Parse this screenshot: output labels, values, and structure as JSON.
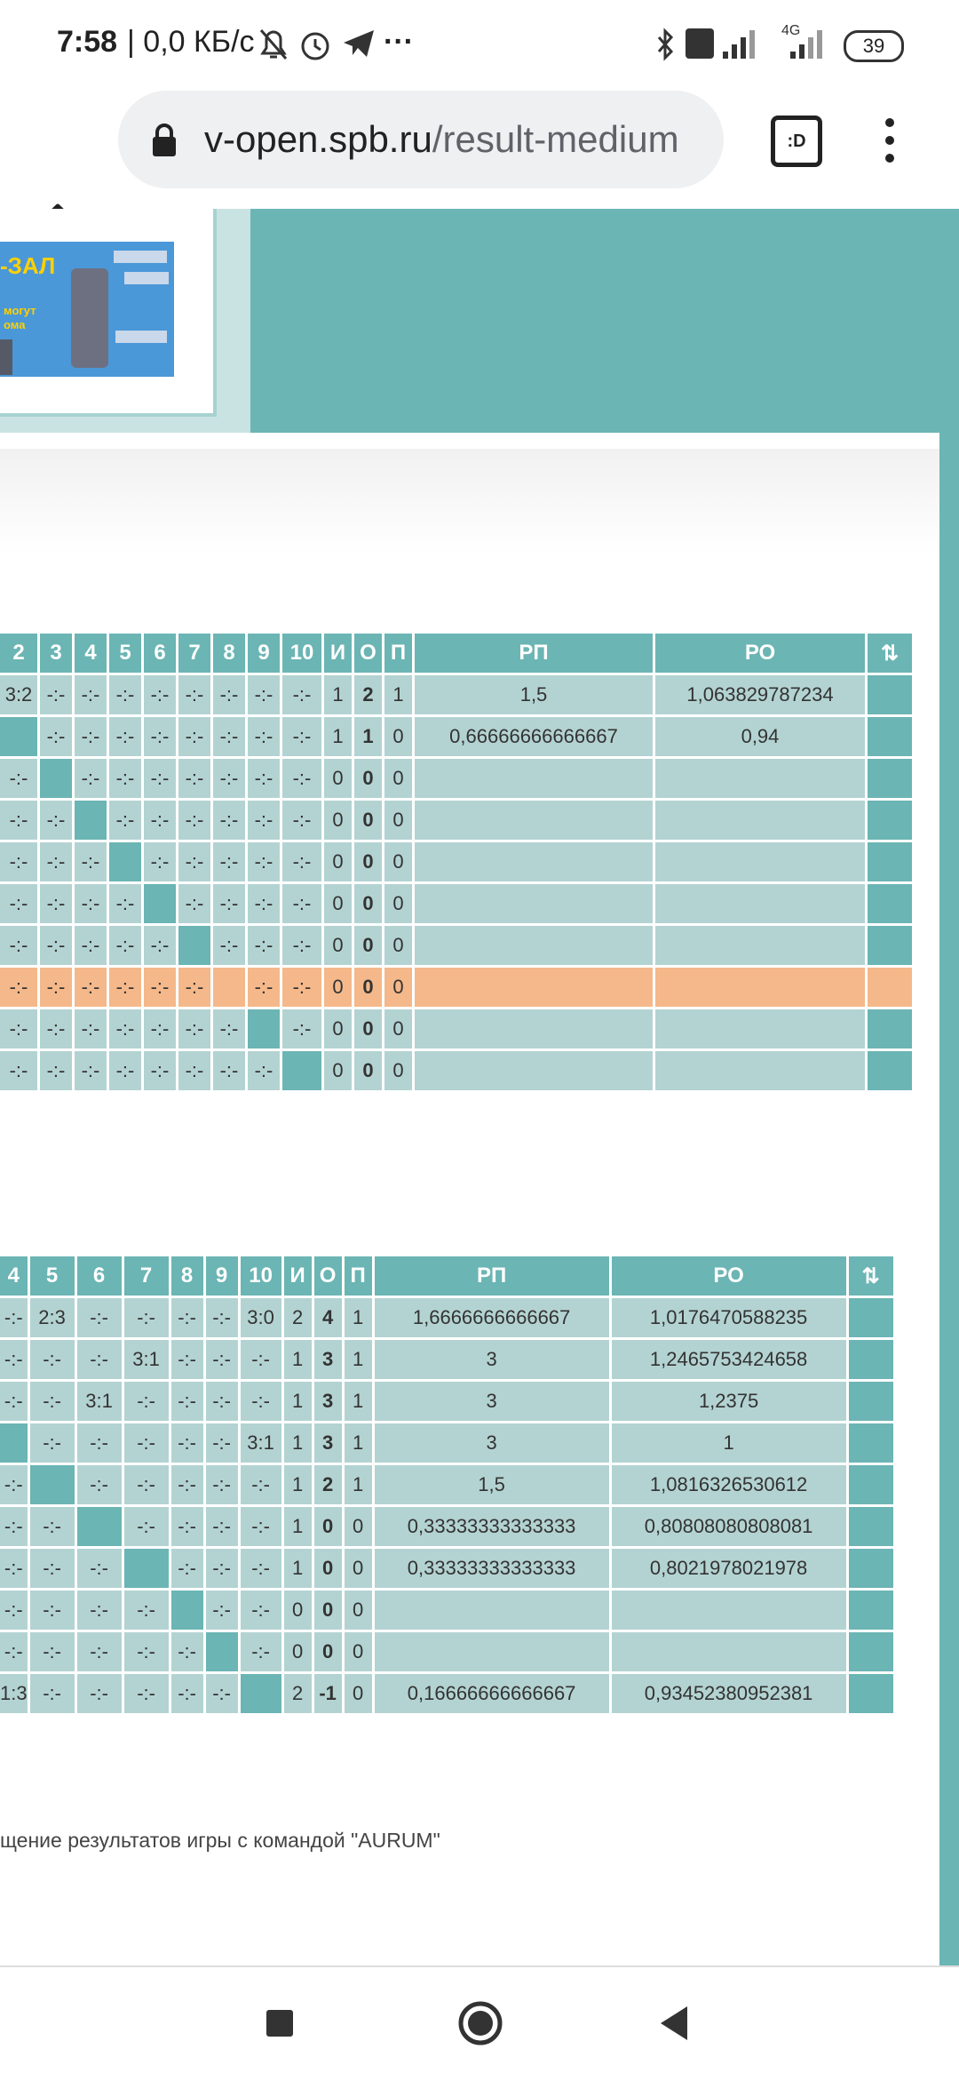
{
  "status_bar": {
    "time": "7:58",
    "speed": "| 0,0 КБ/с",
    "more": "···",
    "network": "4G",
    "battery": "39"
  },
  "browser": {
    "url_host": "v-open.spb.ru",
    "url_path": "/result-medium",
    "tab_switcher": ":D"
  },
  "banner": {
    "text1": "-ЗАЛ",
    "text2": "могут",
    "text3": "ома"
  },
  "table1": {
    "headers": [
      "2",
      "3",
      "4",
      "5",
      "6",
      "7",
      "8",
      "9",
      "10",
      "И",
      "О",
      "П",
      "РП",
      "РО",
      "⇅"
    ],
    "rows": [
      {
        "cells": [
          "3:2",
          "-:-",
          "-:-",
          "-:-",
          "-:-",
          "-:-",
          "-:-",
          "-:-",
          "-:-",
          "1",
          "2",
          "1",
          "1,5",
          "1,063829787234",
          ""
        ],
        "self": -1
      },
      {
        "cells": [
          "",
          "-:-",
          "-:-",
          "-:-",
          "-:-",
          "-:-",
          "-:-",
          "-:-",
          "-:-",
          "1",
          "1",
          "0",
          "0,66666666666667",
          "0,94",
          ""
        ],
        "self": 0
      },
      {
        "cells": [
          "-:-",
          "",
          "-:-",
          "-:-",
          "-:-",
          "-:-",
          "-:-",
          "-:-",
          "-:-",
          "0",
          "0",
          "0",
          "",
          "",
          ""
        ],
        "self": 1
      },
      {
        "cells": [
          "-:-",
          "-:-",
          "",
          "-:-",
          "-:-",
          "-:-",
          "-:-",
          "-:-",
          "-:-",
          "0",
          "0",
          "0",
          "",
          "",
          ""
        ],
        "self": 2
      },
      {
        "cells": [
          "-:-",
          "-:-",
          "-:-",
          "",
          "-:-",
          "-:-",
          "-:-",
          "-:-",
          "-:-",
          "0",
          "0",
          "0",
          "",
          "",
          ""
        ],
        "self": 3
      },
      {
        "cells": [
          "-:-",
          "-:-",
          "-:-",
          "-:-",
          "",
          "-:-",
          "-:-",
          "-:-",
          "-:-",
          "0",
          "0",
          "0",
          "",
          "",
          ""
        ],
        "self": 4
      },
      {
        "cells": [
          "-:-",
          "-:-",
          "-:-",
          "-:-",
          "-:-",
          "",
          "-:-",
          "-:-",
          "-:-",
          "0",
          "0",
          "0",
          "",
          "",
          ""
        ],
        "self": 5
      },
      {
        "cells": [
          "-:-",
          "-:-",
          "-:-",
          "-:-",
          "-:-",
          "-:-",
          "",
          "-:-",
          "-:-",
          "0",
          "0",
          "0",
          "",
          "",
          ""
        ],
        "self": -1,
        "highlight": true
      },
      {
        "cells": [
          "-:-",
          "-:-",
          "-:-",
          "-:-",
          "-:-",
          "-:-",
          "-:-",
          "",
          "-:-",
          "0",
          "0",
          "0",
          "",
          "",
          ""
        ],
        "self": 7
      },
      {
        "cells": [
          "-:-",
          "-:-",
          "-:-",
          "-:-",
          "-:-",
          "-:-",
          "-:-",
          "-:-",
          "",
          "0",
          "0",
          "0",
          "",
          "",
          ""
        ],
        "self": 8
      }
    ]
  },
  "table2": {
    "headers": [
      "4",
      "5",
      "6",
      "7",
      "8",
      "9",
      "10",
      "И",
      "О",
      "П",
      "РП",
      "РО",
      "⇅"
    ],
    "rows": [
      {
        "cells": [
          "-:-",
          "2:3",
          "-:-",
          "-:-",
          "-:-",
          "-:-",
          "3:0",
          "2",
          "4",
          "1",
          "1,6666666666667",
          "1,0176470588235",
          ""
        ],
        "self": -1
      },
      {
        "cells": [
          "-:-",
          "-:-",
          "-:-",
          "3:1",
          "-:-",
          "-:-",
          "-:-",
          "1",
          "3",
          "1",
          "3",
          "1,2465753424658",
          ""
        ],
        "self": -1
      },
      {
        "cells": [
          "-:-",
          "-:-",
          "3:1",
          "-:-",
          "-:-",
          "-:-",
          "-:-",
          "1",
          "3",
          "1",
          "3",
          "1,2375",
          ""
        ],
        "self": -1
      },
      {
        "cells": [
          "",
          "-:-",
          "-:-",
          "-:-",
          "-:-",
          "-:-",
          "3:1",
          "1",
          "3",
          "1",
          "3",
          "1",
          ""
        ],
        "self": 0
      },
      {
        "cells": [
          "-:-",
          "",
          "-:-",
          "-:-",
          "-:-",
          "-:-",
          "-:-",
          "1",
          "2",
          "1",
          "1,5",
          "1,0816326530612",
          ""
        ],
        "self": 1
      },
      {
        "cells": [
          "-:-",
          "-:-",
          "",
          "-:-",
          "-:-",
          "-:-",
          "-:-",
          "1",
          "0",
          "0",
          "0,33333333333333",
          "0,80808080808081",
          ""
        ],
        "self": 2
      },
      {
        "cells": [
          "-:-",
          "-:-",
          "-:-",
          "",
          "-:-",
          "-:-",
          "-:-",
          "1",
          "0",
          "0",
          "0,33333333333333",
          "0,8021978021978",
          ""
        ],
        "self": 3
      },
      {
        "cells": [
          "-:-",
          "-:-",
          "-:-",
          "-:-",
          "",
          "-:-",
          "-:-",
          "0",
          "0",
          "0",
          "",
          "",
          ""
        ],
        "self": 4
      },
      {
        "cells": [
          "-:-",
          "-:-",
          "-:-",
          "-:-",
          "-:-",
          "",
          "-:-",
          "0",
          "0",
          "0",
          "",
          "",
          ""
        ],
        "self": 5
      },
      {
        "cells": [
          "1:3",
          "-:-",
          "-:-",
          "-:-",
          "-:-",
          "-:-",
          "",
          "2",
          "-1",
          "0",
          "0,16666666666667",
          "0,93452380952381",
          ""
        ],
        "self": 6
      }
    ]
  },
  "note": "щение результатов игры с командой \"AURUM\"",
  "colors": {
    "header": "#6bb5b4",
    "cell": "#b3d3d2",
    "highlight": "#f4b88a"
  }
}
